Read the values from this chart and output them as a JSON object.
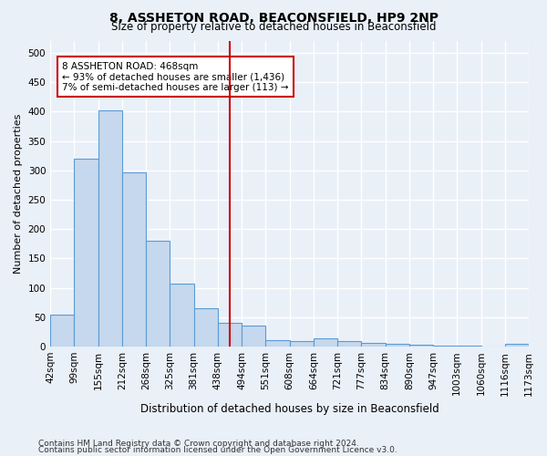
{
  "title": "8, ASSHETON ROAD, BEACONSFIELD, HP9 2NP",
  "subtitle": "Size of property relative to detached houses in Beaconsfield",
  "xlabel": "Distribution of detached houses by size in Beaconsfield",
  "ylabel": "Number of detached properties",
  "footer1": "Contains HM Land Registry data © Crown copyright and database right 2024.",
  "footer2": "Contains public sector information licensed under the Open Government Licence v3.0.",
  "bar_labels": [
    "42sqm",
    "99sqm",
    "155sqm",
    "212sqm",
    "268sqm",
    "325sqm",
    "381sqm",
    "438sqm",
    "494sqm",
    "551sqm",
    "608sqm",
    "664sqm",
    "721sqm",
    "777sqm",
    "834sqm",
    "890sqm",
    "947sqm",
    "1003sqm",
    "1060sqm",
    "1116sqm",
    "1173sqm"
  ],
  "bar_values": [
    55,
    320,
    402,
    297,
    180,
    107,
    65,
    40,
    36,
    11,
    10,
    14,
    10,
    7,
    5,
    3,
    2,
    1,
    0,
    5
  ],
  "bar_color": "#c5d8ed",
  "bar_edge_color": "#5b9bd5",
  "ylim": [
    0,
    520
  ],
  "yticks": [
    0,
    50,
    100,
    150,
    200,
    250,
    300,
    350,
    400,
    450,
    500
  ],
  "property_line_x": 7.5,
  "property_size": "468sqm",
  "annotation_text": "8 ASSHETON ROAD: 468sqm\n← 93% of detached houses are smaller (1,436)\n7% of semi-detached houses are larger (113) →",
  "annotation_box_color": "#ffffff",
  "annotation_box_edge": "#cc0000",
  "vline_color": "#cc0000",
  "bg_color": "#eaf0f8",
  "grid_color": "#ffffff"
}
